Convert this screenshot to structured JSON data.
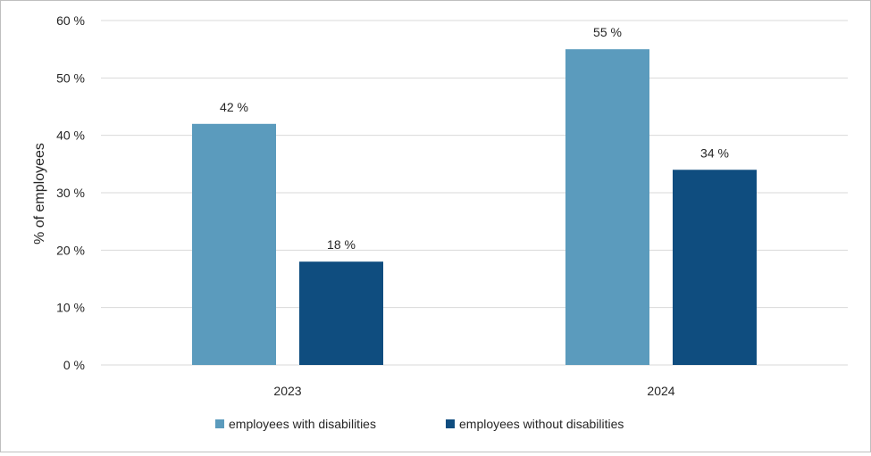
{
  "chart_data": {
    "type": "bar",
    "title": "",
    "xlabel": "",
    "ylabel": "% of employees",
    "categories": [
      "2023",
      "2024"
    ],
    "series": [
      {
        "name": "employees with disabilities",
        "values": [
          42,
          55
        ],
        "labels": [
          "42 %",
          "55 %"
        ],
        "color": "#5b9bbd"
      },
      {
        "name": "employees without disabilities",
        "values": [
          18,
          34
        ],
        "labels": [
          "18 %",
          "34 %"
        ],
        "color": "#0f4d7f"
      }
    ],
    "ylim": [
      0,
      60
    ],
    "yticks": [
      0,
      10,
      20,
      30,
      40,
      50,
      60
    ],
    "ytick_labels": [
      "0 %",
      "10 %",
      "20 %",
      "30 %",
      "40 %",
      "50 %",
      "60 %"
    ],
    "grid": true,
    "legend_position": "bottom"
  }
}
